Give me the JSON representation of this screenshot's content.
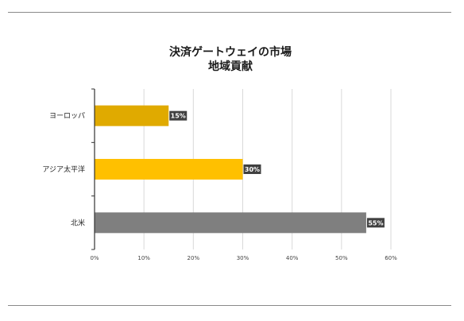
{
  "chart_data": {
    "type": "bar",
    "orientation": "horizontal",
    "title_lines": [
      "決済ゲートウェイの市場",
      "地域貢献"
    ],
    "categories": [
      "ヨーロッパ",
      "アジア太平洋",
      "北米"
    ],
    "values": [
      15,
      30,
      55
    ],
    "data_labels": [
      "15%",
      "30%",
      "55%"
    ],
    "colors": [
      "#e0aa00",
      "#ffc000",
      "#7f7f7f"
    ],
    "xlim": [
      0,
      60
    ],
    "xticks": [
      0,
      10,
      20,
      30,
      40,
      50,
      60
    ],
    "xtick_labels": [
      "0%",
      "10%",
      "20%",
      "30%",
      "40%",
      "50%",
      "60%"
    ],
    "grid": true,
    "legend": "none"
  }
}
